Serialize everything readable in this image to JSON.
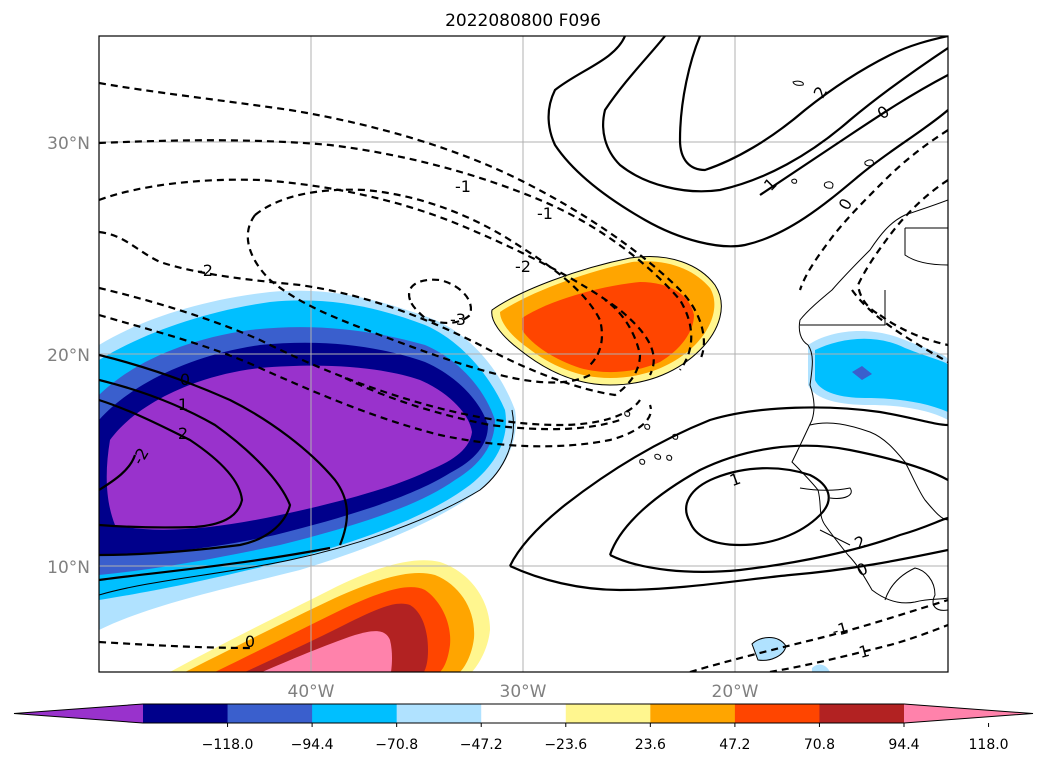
{
  "title": "2022080800 F096",
  "lat_labels": [
    "30°N",
    "20°N",
    "10°N"
  ],
  "lon_labels": [
    "40°W",
    "30°W",
    "20°W"
  ],
  "colorbar": {
    "colors": [
      "#9932cc",
      "#00008b",
      "#3a5fcd",
      "#00bfff",
      "#b0e2ff",
      "#ffffff",
      "#fff68f",
      "#ffa500",
      "#ff4500",
      "#b22222",
      "#ff82ab"
    ],
    "tick_labels": [
      "−118.0",
      "−94.4",
      "−70.8",
      "−47.2",
      "−23.6",
      "23.6",
      "47.2",
      "70.8",
      "94.4",
      "118.0"
    ]
  },
  "contour_labels": [
    "2",
    "0",
    "1",
    "0",
    "-1",
    "-2",
    "-3",
    "-2",
    "-1",
    "0",
    "1",
    "2",
    "-2",
    "0",
    "1",
    "2",
    "-1",
    "0",
    "1",
    "-1",
    "0",
    "-1",
    "-1",
    "0",
    "-1"
  ]
}
